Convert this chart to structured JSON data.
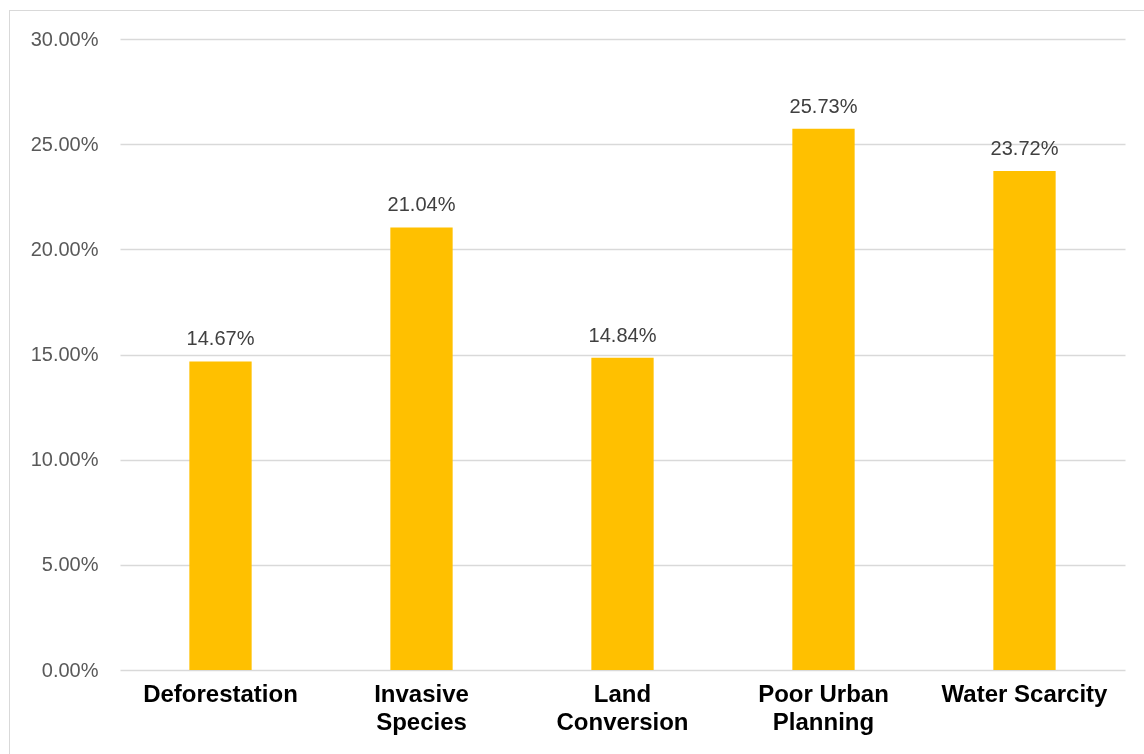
{
  "chart_data": {
    "type": "bar",
    "categories": [
      "Deforestation",
      "Invasive Species",
      "Land Conversion",
      "Poor Urban Planning",
      "Water Scarcity"
    ],
    "values": [
      14.67,
      21.04,
      14.84,
      25.73,
      23.72
    ],
    "color": "#ffc000",
    "value_labels": [
      "14.67%",
      "21.04%",
      "14.84%",
      "25.73%",
      "23.72%"
    ],
    "ylim": [
      0,
      30
    ],
    "yticks": [
      {
        "value": 0,
        "label": "0.00%"
      },
      {
        "value": 5,
        "label": "5.00%"
      },
      {
        "value": 10,
        "label": "10.00%"
      },
      {
        "value": 15,
        "label": "15.00%"
      },
      {
        "value": 20,
        "label": "20.00%"
      },
      {
        "value": 25,
        "label": "25.00%"
      },
      {
        "value": 30,
        "label": "30.00%"
      }
    ],
    "grid": "y"
  }
}
